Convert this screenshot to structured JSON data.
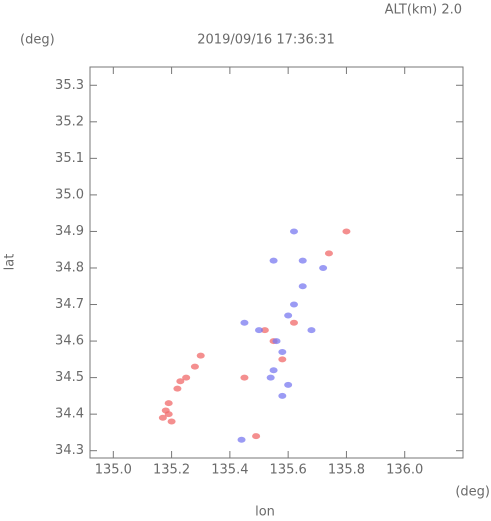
{
  "chart_data": {
    "type": "scatter",
    "title": "2019/09/16 17:36:31",
    "annotation": "ALT(km) 2.0",
    "y_unit": "(deg)",
    "x_unit": "(deg)",
    "x_label": "lon",
    "y_label": "lat",
    "xlim": [
      134.92,
      136.2
    ],
    "ylim": [
      34.28,
      35.35
    ],
    "xticks": [
      {
        "value": 135.0,
        "label": "135.0"
      },
      135.2,
      135.4,
      135.6,
      135.8,
      {
        "value": 136.0,
        "label": "136.0"
      }
    ],
    "yticks": [
      34.3,
      34.4,
      34.5,
      34.6,
      34.7,
      34.8,
      34.9,
      {
        "value": 35.0,
        "label": "35.0"
      },
      35.1,
      35.2,
      35.3
    ],
    "series": [
      {
        "color": "#f06a6a",
        "x": [
          135.17,
          135.18,
          135.19,
          135.2,
          135.22,
          135.23,
          135.25,
          135.28,
          135.3,
          135.19,
          135.55,
          135.52,
          135.8,
          135.45,
          135.58,
          135.49,
          135.62,
          135.74
        ],
        "y": [
          34.39,
          34.41,
          34.43,
          34.38,
          34.47,
          34.49,
          34.5,
          34.53,
          34.56,
          34.4,
          34.6,
          34.63,
          34.9,
          34.5,
          34.55,
          34.34,
          34.65,
          34.84
        ]
      },
      {
        "color": "#7a7af0",
        "x": [
          135.5,
          135.56,
          135.58,
          135.6,
          135.62,
          135.65,
          135.55,
          135.65,
          135.72,
          135.45,
          135.55,
          135.6,
          135.58,
          135.44,
          135.62,
          135.54,
          135.68
        ],
        "y": [
          34.63,
          34.6,
          34.57,
          34.67,
          34.7,
          34.75,
          34.82,
          34.82,
          34.8,
          34.65,
          34.52,
          34.48,
          34.45,
          34.33,
          34.9,
          34.5,
          34.63
        ]
      }
    ]
  }
}
